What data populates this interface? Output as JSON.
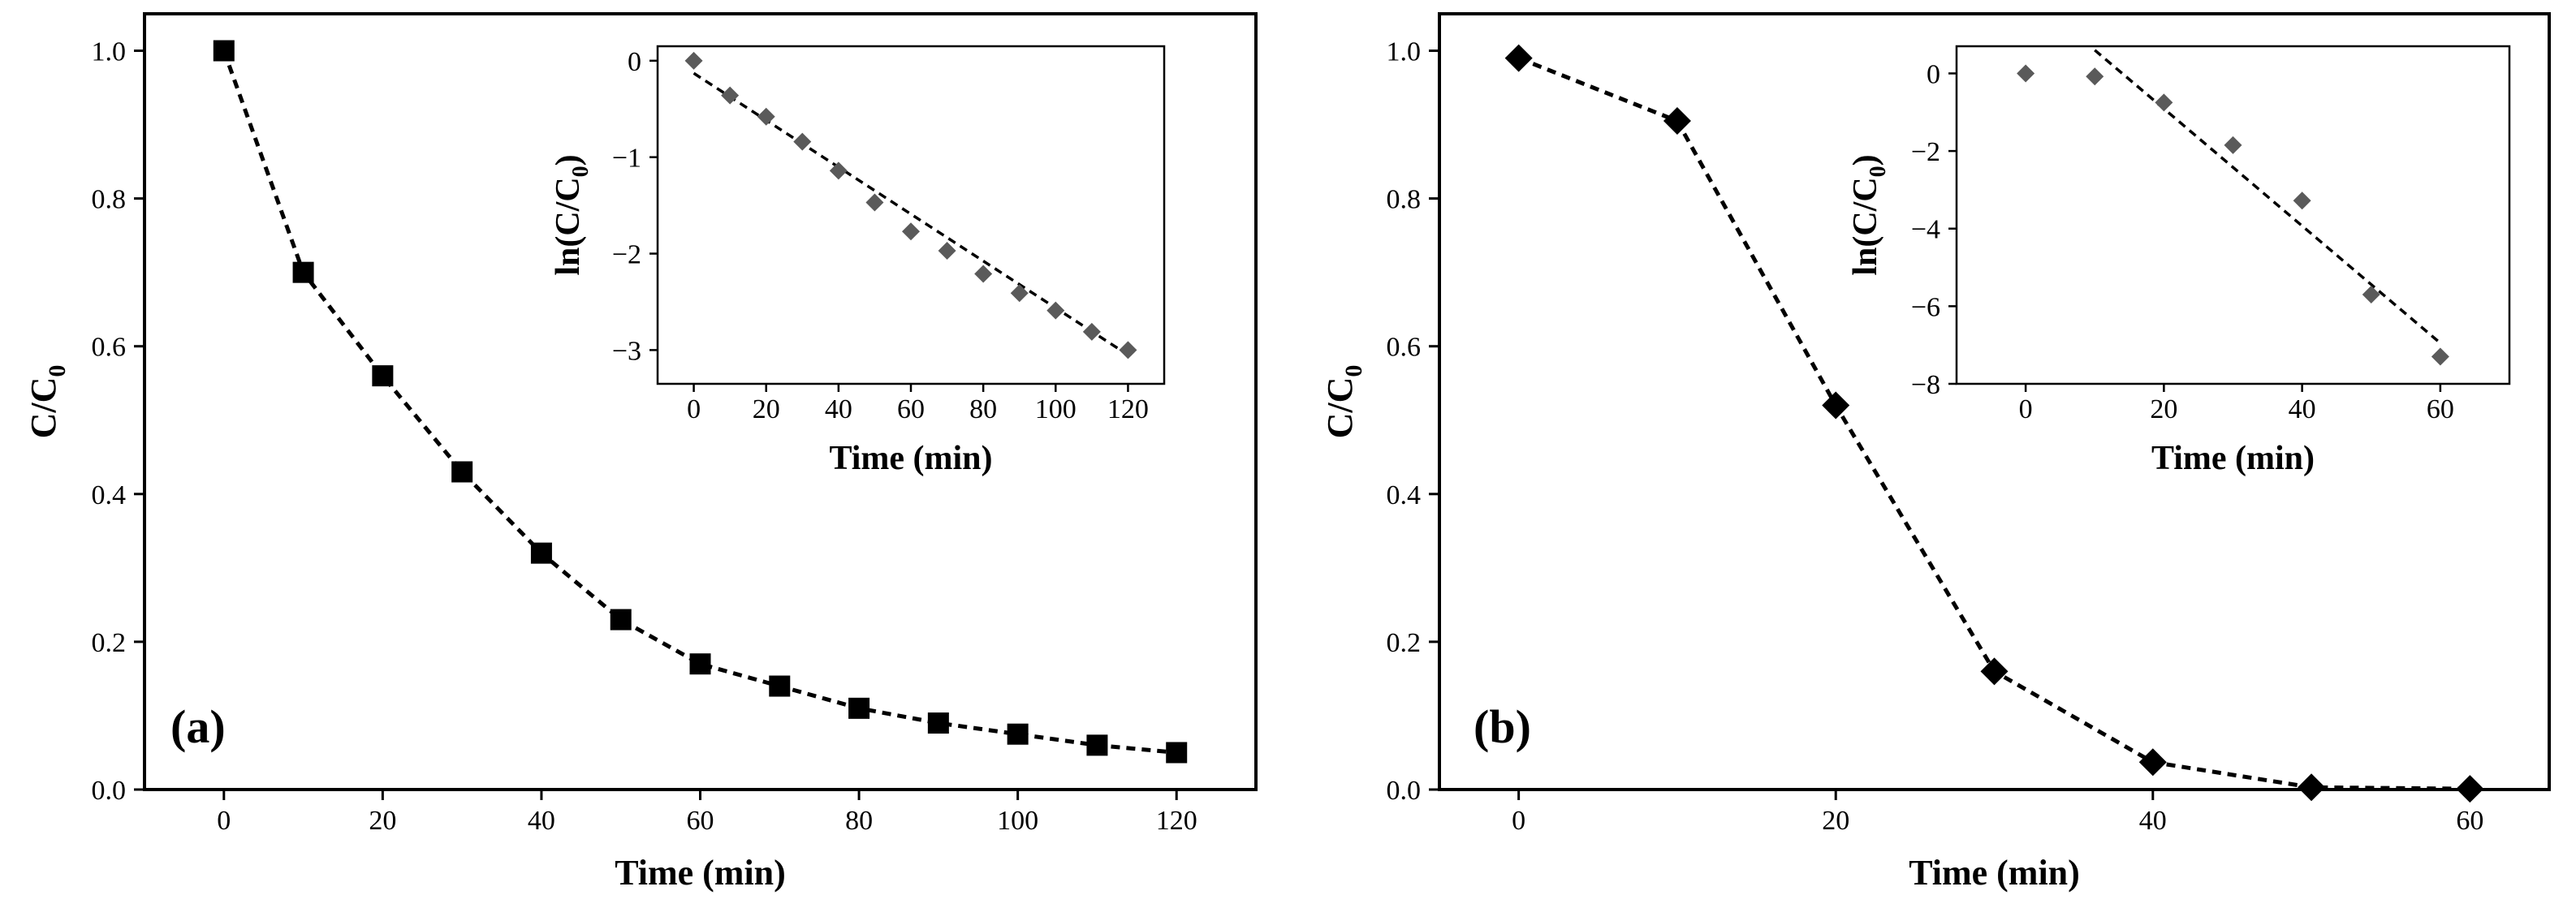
{
  "chart_data": [
    {
      "panel": "(a)",
      "type": "line",
      "marker": "square",
      "xlabel": "Time (min)",
      "ylabel": "C/C",
      "ylabel_sub": "0",
      "xlim": [
        -10,
        130
      ],
      "ylim": [
        0,
        1.05
      ],
      "xticks": [
        0,
        20,
        40,
        60,
        80,
        100,
        120
      ],
      "yticks": [
        0.0,
        0.2,
        0.4,
        0.6,
        0.8,
        1.0
      ],
      "ytick_labels": [
        "0.0",
        "0.2",
        "0.4",
        "0.6",
        "0.8",
        "1.0"
      ],
      "x": [
        0,
        10,
        20,
        30,
        40,
        50,
        60,
        70,
        80,
        90,
        100,
        110,
        120
      ],
      "y": [
        1.0,
        0.7,
        0.56,
        0.43,
        0.32,
        0.23,
        0.17,
        0.14,
        0.11,
        0.09,
        0.075,
        0.06,
        0.05
      ],
      "inset": {
        "type": "scatter",
        "marker": "diamond",
        "xlabel": "Time (min)",
        "ylabel": "ln(C/C",
        "ylabel_sub": "0",
        "ylabel_tail": ")",
        "xlim": [
          -10,
          130
        ],
        "ylim": [
          -3.35,
          0.15
        ],
        "xticks": [
          0,
          20,
          40,
          60,
          80,
          100,
          120
        ],
        "yticks": [
          0,
          -1,
          -2,
          -3
        ],
        "ytick_labels": [
          "0",
          "−1",
          "−2",
          "−3"
        ],
        "x": [
          0,
          10,
          20,
          30,
          40,
          50,
          60,
          70,
          80,
          90,
          100,
          110,
          120
        ],
        "y": [
          0,
          -0.36,
          -0.58,
          -0.84,
          -1.14,
          -1.47,
          -1.77,
          -1.97,
          -2.21,
          -2.41,
          -2.59,
          -2.81,
          -3.0
        ],
        "fit": {
          "x": [
            0,
            120
          ],
          "y": [
            -0.13,
            -3.05
          ]
        }
      }
    },
    {
      "panel": "(b)",
      "type": "line",
      "marker": "diamond",
      "xlabel": "Time (min)",
      "ylabel": "C/C",
      "ylabel_sub": "0",
      "xlim": [
        -5,
        65
      ],
      "ylim": [
        0,
        1.05
      ],
      "xticks": [
        0,
        20,
        40,
        60
      ],
      "yticks": [
        0.0,
        0.2,
        0.4,
        0.6,
        0.8,
        1.0
      ],
      "ytick_labels": [
        "0.0",
        "0.2",
        "0.4",
        "0.6",
        "0.8",
        "1.0"
      ],
      "x": [
        0,
        10,
        20,
        30,
        40,
        50,
        60
      ],
      "y": [
        0.99,
        0.905,
        0.52,
        0.16,
        0.037,
        0.003,
        0.001
      ],
      "inset": {
        "type": "scatter",
        "marker": "diamond",
        "xlabel": "Time (min)",
        "ylabel": "ln(C/C",
        "ylabel_sub": "0",
        "ylabel_tail": ")",
        "xlim": [
          -10,
          70
        ],
        "ylim": [
          -8.0,
          0.7
        ],
        "xticks": [
          0,
          20,
          40,
          60
        ],
        "yticks": [
          0,
          -2,
          -4,
          -6,
          -8
        ],
        "ytick_labels": [
          "0",
          "−2",
          "−4",
          "−6",
          "−8"
        ],
        "x": [
          0,
          10,
          20,
          30,
          40,
          50,
          60
        ],
        "y": [
          0,
          -0.08,
          -0.75,
          -1.85,
          -3.28,
          -5.7,
          -7.3
        ],
        "fit": {
          "x": [
            10,
            60
          ],
          "y": [
            0.6,
            -6.95
          ]
        }
      }
    }
  ]
}
